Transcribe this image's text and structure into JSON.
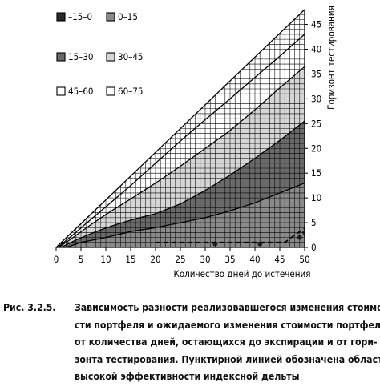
{
  "chart_data": {
    "type": "heatmap",
    "title": "",
    "xlabel": "Количество дней до истечения",
    "ylabel": "Горизонт тестирования",
    "xlim": [
      0,
      50
    ],
    "ylim": [
      0,
      48
    ],
    "x_ticks": [
      "0",
      "5",
      "10",
      "15",
      "20",
      "25",
      "30",
      "35",
      "40",
      "45",
      "50"
    ],
    "y_ticks": [
      "0",
      "5",
      "10",
      "15",
      "20",
      "25",
      "30",
      "35",
      "40",
      "45"
    ],
    "grid": true,
    "domain": "triangle: horizon <= days to expiration",
    "legend": {
      "placement": "top-left",
      "entries": [
        {
          "label": "–15–0",
          "color": "#2a2a2a"
        },
        {
          "label": "0–15",
          "color": "#8a8a8a"
        },
        {
          "label": "15–30",
          "color": "#6a6a6a"
        },
        {
          "label": "30–45",
          "color": "#d6d6d6"
        },
        {
          "label": "45–60",
          "color": "#ffffff"
        },
        {
          "label": "60–75",
          "color": "#ffffff"
        }
      ]
    },
    "contours": [
      {
        "level": "0",
        "points": [
          [
            2,
            0
          ],
          [
            5,
            1
          ],
          [
            10,
            2
          ],
          [
            15,
            3.2
          ],
          [
            20,
            4
          ],
          [
            25,
            5
          ],
          [
            30,
            6
          ],
          [
            35,
            7.4
          ],
          [
            40,
            9
          ],
          [
            45,
            11
          ],
          [
            50,
            13
          ]
        ]
      },
      {
        "level": "15",
        "points": [
          [
            1,
            0
          ],
          [
            4,
            1.5
          ],
          [
            8,
            3.2
          ],
          [
            12,
            4.6
          ],
          [
            16,
            5.8
          ],
          [
            20,
            6.8
          ],
          [
            25,
            8.8
          ],
          [
            30,
            11.5
          ],
          [
            35,
            14.6
          ],
          [
            40,
            18
          ],
          [
            45,
            21.6
          ],
          [
            50,
            25.5
          ]
        ]
      },
      {
        "level": "30",
        "points": [
          [
            0.5,
            0
          ],
          [
            3,
            1.7
          ],
          [
            7,
            4.6
          ],
          [
            11,
            7.3
          ],
          [
            15,
            9.8
          ],
          [
            20,
            13
          ],
          [
            25,
            16.4
          ],
          [
            30,
            20
          ],
          [
            35,
            23.6
          ],
          [
            40,
            27.8
          ],
          [
            45,
            32.2
          ],
          [
            50,
            36.5
          ]
        ]
      },
      {
        "level": "45",
        "points": [
          [
            0.3,
            0
          ],
          [
            3,
            2.2
          ],
          [
            6,
            4.8
          ],
          [
            10,
            8.2
          ],
          [
            15,
            12.5
          ],
          [
            20,
            17
          ],
          [
            25,
            21.5
          ],
          [
            30,
            25.8
          ],
          [
            35,
            30
          ],
          [
            40,
            34.3
          ],
          [
            45,
            38.6
          ],
          [
            50,
            43
          ]
        ]
      }
    ],
    "high_efficiency_dashed": [
      [
        20,
        1
      ],
      [
        30,
        1
      ],
      [
        40,
        1
      ],
      [
        46,
        1
      ],
      [
        48,
        2.5
      ],
      [
        50,
        3.8
      ]
    ],
    "dark_region_points": [
      [
        32,
        0.7
      ],
      [
        41,
        0.7
      ],
      [
        49,
        2
      ],
      [
        50,
        3
      ]
    ]
  },
  "caption": {
    "fig_label": "Рис. 3.2.5.",
    "lines": [
      "Зависимость разности реализовавшегося изменения стоимо-",
      "сти портфеля и ожидаемого изменения стоимости портфеля",
      "от количества дней, остающихся до экспирации и от гори-",
      "зонта тестирования. Пунктирной линией обозначена область",
      "высокой эффективности индексной дельты"
    ]
  }
}
